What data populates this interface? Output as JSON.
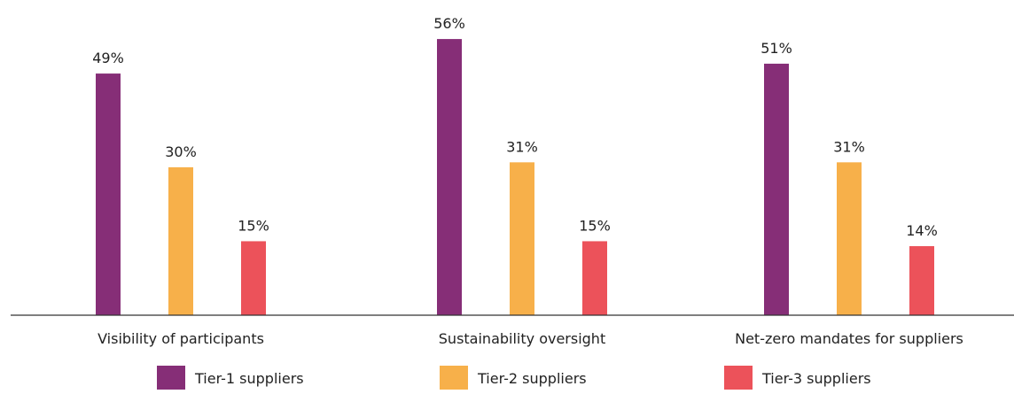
{
  "chart_data": {
    "type": "bar",
    "categories": [
      "Visibility of participants",
      "Sustainability oversight",
      "Net-zero mandates for suppliers"
    ],
    "series": [
      {
        "name": "Tier-1 suppliers",
        "values": [
          49,
          56,
          51
        ],
        "labels": [
          "49%",
          "56%",
          "51%"
        ],
        "color": "#862e77"
      },
      {
        "name": "Tier-2 suppliers",
        "values": [
          30,
          31,
          31
        ],
        "labels": [
          "30%",
          "31%",
          "31%"
        ],
        "color": "#f7b04a"
      },
      {
        "name": "Tier-3 suppliers",
        "values": [
          15,
          15,
          14
        ],
        "labels": [
          "15%",
          "15%",
          "14%"
        ],
        "color": "#ec525a"
      }
    ],
    "unit": "%",
    "ylim": [
      0,
      62
    ],
    "grid": false,
    "legend_position": "bottom",
    "axis_color": "#333333"
  }
}
